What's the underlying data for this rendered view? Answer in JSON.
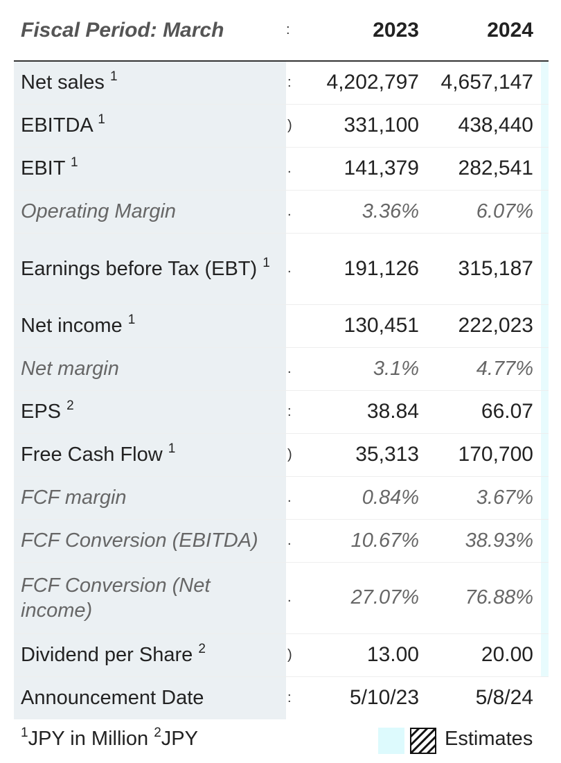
{
  "header": {
    "label": "Fiscal Period: March",
    "gap_mark": ":",
    "year1": "2023",
    "year2": "2024"
  },
  "rows": [
    {
      "label": "Net sales",
      "note": "1",
      "gap": ":",
      "y1": "4,202,797",
      "y2": "4,657,147"
    },
    {
      "label": "EBITDA",
      "note": "1",
      "gap": ")",
      "y1": "331,100",
      "y2": "438,440"
    },
    {
      "label": "EBIT",
      "note": "1",
      "gap": ".",
      "y1": "141,379",
      "y2": "282,541"
    },
    {
      "label": "Operating Margin",
      "note": "",
      "gap": ".",
      "y1": "3.36%",
      "y2": "6.07%"
    },
    {
      "label": "Earnings before Tax (EBT)",
      "note": "1",
      "gap": ".",
      "y1": "191,126",
      "y2": "315,187"
    },
    {
      "label": "Net income",
      "note": "1",
      "gap": "",
      "y1": "130,451",
      "y2": "222,023"
    },
    {
      "label": "Net margin",
      "note": "",
      "gap": ".",
      "y1": "3.1%",
      "y2": "4.77%"
    },
    {
      "label": "EPS",
      "note": "2",
      "gap": ":",
      "y1": "38.84",
      "y2": "66.07"
    },
    {
      "label": "Free Cash Flow",
      "note": "1",
      "gap": ")",
      "y1": "35,313",
      "y2": "170,700"
    },
    {
      "label": "FCF margin",
      "note": "",
      "gap": ".",
      "y1": "0.84%",
      "y2": "3.67%"
    },
    {
      "label": "FCF Conversion (EBITDA)",
      "note": "",
      "gap": ".",
      "y1": "10.67%",
      "y2": "38.93%"
    },
    {
      "label": "FCF Conversion (Net income)",
      "note": "",
      "gap": ".",
      "y1": "27.07%",
      "y2": "76.88%"
    },
    {
      "label": "Dividend per Share",
      "note": "2",
      "gap": ")",
      "y1": "13.00",
      "y2": "20.00"
    },
    {
      "label": "Announcement Date",
      "note": "",
      "gap": ":",
      "y1": "5/10/23",
      "y2": "5/8/24"
    }
  ],
  "legend": {
    "unit1_mark": "1",
    "unit1": "JPY in Million",
    "unit2_mark": "2",
    "unit2": "JPY",
    "estimates_label": "Estimates"
  },
  "colors": {
    "label_column_bg": "#ebf0f3",
    "estimates_swatch": "#ddfafd",
    "header_rule": "#333333"
  }
}
